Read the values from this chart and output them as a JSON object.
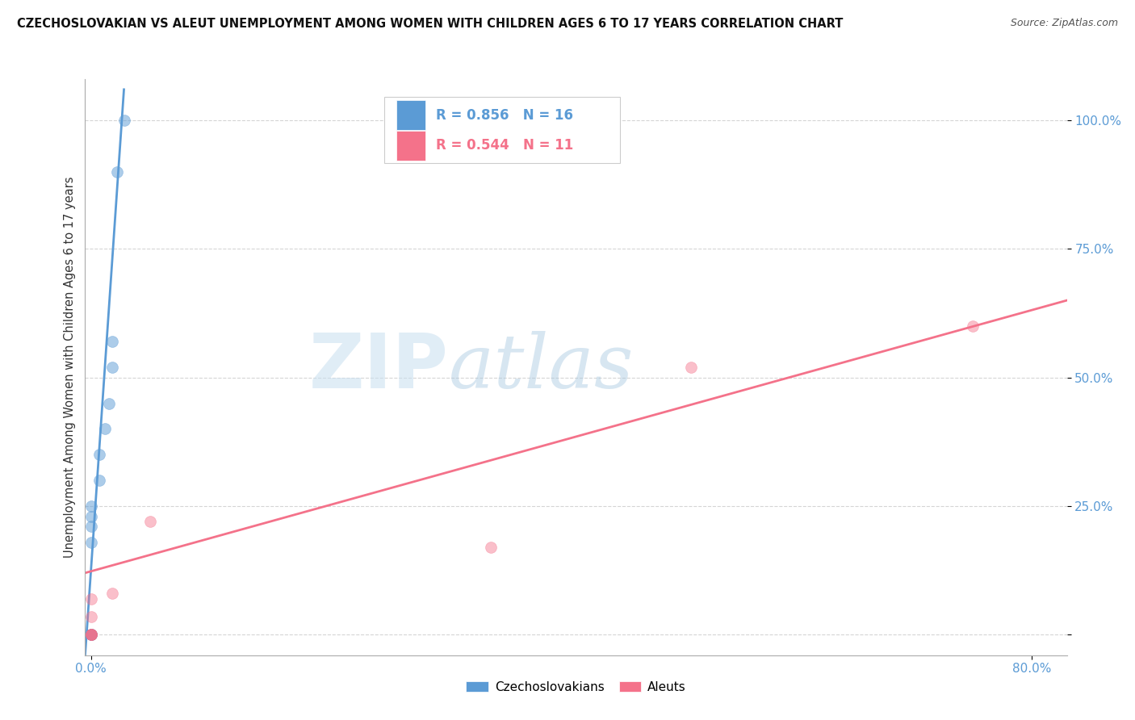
{
  "title": "CZECHOSLOVAKIAN VS ALEUT UNEMPLOYMENT AMONG WOMEN WITH CHILDREN AGES 6 TO 17 YEARS CORRELATION CHART",
  "source": "Source: ZipAtlas.com",
  "ylabel": "Unemployment Among Women with Children Ages 6 to 17 years",
  "xlim": [
    -0.005,
    0.83
  ],
  "ylim": [
    -0.04,
    1.08
  ],
  "czech_color": "#5b9bd5",
  "aleut_color": "#f4728a",
  "czech_R": 0.856,
  "czech_N": 16,
  "aleut_R": 0.544,
  "aleut_N": 11,
  "czech_scatter_x": [
    0.0,
    0.0,
    0.0,
    0.0,
    0.0,
    0.0,
    0.0,
    0.0,
    0.007,
    0.007,
    0.012,
    0.015,
    0.018,
    0.018,
    0.022,
    0.028
  ],
  "czech_scatter_y": [
    0.0,
    0.0,
    0.0,
    0.0,
    0.18,
    0.21,
    0.23,
    0.25,
    0.3,
    0.35,
    0.4,
    0.45,
    0.52,
    0.57,
    0.9,
    1.0
  ],
  "aleut_scatter_x": [
    0.0,
    0.0,
    0.0,
    0.0,
    0.0,
    0.0,
    0.018,
    0.05,
    0.34,
    0.51,
    0.75
  ],
  "aleut_scatter_y": [
    0.0,
    0.0,
    0.0,
    0.0,
    0.035,
    0.07,
    0.08,
    0.22,
    0.17,
    0.52,
    0.6
  ],
  "czech_line": {
    "x0": -0.005,
    "x1": 0.028,
    "y0": -0.04,
    "y1": 1.06
  },
  "aleut_line": {
    "x0": -0.005,
    "x1": 0.83,
    "y0": 0.12,
    "y1": 0.65
  },
  "y_ticks": [
    0.0,
    0.25,
    0.5,
    0.75,
    1.0
  ],
  "y_tick_labels": [
    "",
    "25.0%",
    "50.0%",
    "75.0%",
    "100.0%"
  ],
  "x_ticks": [
    0.0,
    0.8
  ],
  "x_tick_labels": [
    "0.0%",
    "80.0%"
  ],
  "tick_label_color": "#5b9bd5",
  "watermark_zip": "ZIP",
  "watermark_atlas": "atlas",
  "background_color": "#ffffff",
  "grid_color": "#d5d5d5",
  "legend_border_color": "#cccccc",
  "bottom_legend_labels": [
    "Czechoslovakians",
    "Aleuts"
  ]
}
